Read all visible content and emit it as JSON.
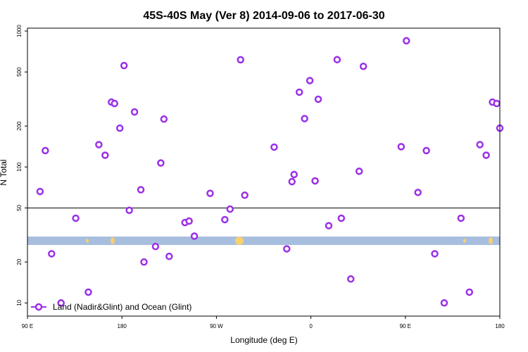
{
  "chart_data": {
    "type": "scatter",
    "title": "45S-40S May (Ver 8)   2014-09-06 to 2017-06-30",
    "xlabel": "Longitude (deg E)",
    "ylabel": "N Total",
    "x_scale": "linear",
    "y_scale": "log",
    "xlim": [
      90,
      540
    ],
    "ylim": [
      8,
      1050
    ],
    "x_ticks": [
      {
        "value": 90,
        "label": "90 E"
      },
      {
        "value": 180,
        "label": "180"
      },
      {
        "value": 270,
        "label": "90 W"
      },
      {
        "value": 360,
        "label": "0"
      },
      {
        "value": 450,
        "label": "90 E"
      },
      {
        "value": 540,
        "label": "180"
      }
    ],
    "y_ticks": [
      10,
      20,
      50,
      100,
      200,
      500,
      1000
    ],
    "reference_line_y": 50,
    "grid": false,
    "legend_position": "bottom-left",
    "series": [
      {
        "name": "Land (Nadir&Glint) and Ocean (Glint)",
        "color": "#9b30e8",
        "marker": "circle-open",
        "points": [
          [
            102,
            66
          ],
          [
            107,
            132
          ],
          [
            113,
            23
          ],
          [
            122,
            10
          ],
          [
            136,
            42
          ],
          [
            148,
            12
          ],
          [
            158,
            146
          ],
          [
            164,
            122
          ],
          [
            170,
            300
          ],
          [
            173,
            293
          ],
          [
            178,
            193
          ],
          [
            182,
            557
          ],
          [
            187,
            48
          ],
          [
            192,
            254
          ],
          [
            198,
            68
          ],
          [
            201,
            20
          ],
          [
            212,
            26
          ],
          [
            217,
            107
          ],
          [
            220,
            225
          ],
          [
            225,
            22
          ],
          [
            240,
            39
          ],
          [
            244,
            40
          ],
          [
            249,
            31
          ],
          [
            264,
            64
          ],
          [
            278,
            41
          ],
          [
            283,
            49
          ],
          [
            293,
            615
          ],
          [
            297,
            62
          ],
          [
            325,
            140
          ],
          [
            337,
            25
          ],
          [
            342,
            78
          ],
          [
            344,
            88
          ],
          [
            349,
            355
          ],
          [
            354,
            227
          ],
          [
            359,
            432
          ],
          [
            364,
            79
          ],
          [
            367,
            315
          ],
          [
            377,
            37
          ],
          [
            385,
            616
          ],
          [
            389,
            42
          ],
          [
            398,
            15
          ],
          [
            406,
            93
          ],
          [
            410,
            550
          ],
          [
            446,
            141
          ],
          [
            462,
            65
          ],
          [
            470,
            132
          ],
          [
            478,
            23
          ],
          [
            487,
            10
          ],
          [
            503,
            42
          ],
          [
            511,
            12
          ],
          [
            521,
            146
          ],
          [
            527,
            122
          ],
          [
            533,
            300
          ],
          [
            537,
            293
          ],
          [
            540,
            193
          ],
          [
            451,
            848
          ]
        ]
      }
    ],
    "map_band": {
      "ocean_color": "#a8bedf",
      "land_color": "#f7d070"
    }
  }
}
